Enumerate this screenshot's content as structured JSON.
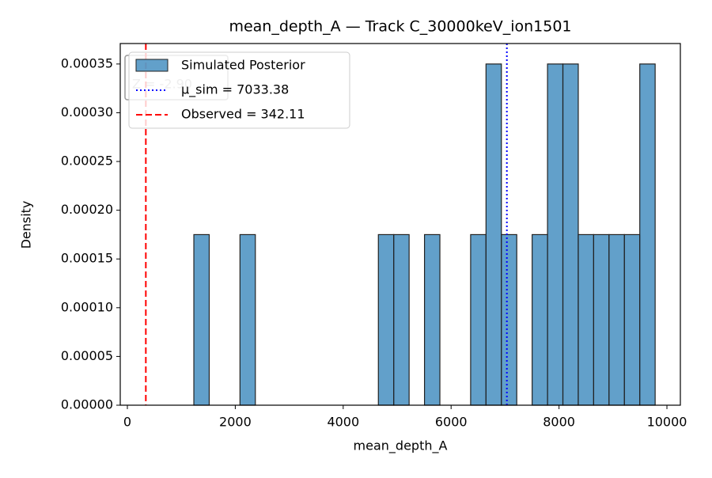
{
  "chart_data": {
    "type": "histogram",
    "title": "mean_depth_A — Track C_30000keV_ion1501",
    "x_label": "mean_depth_A",
    "y_label": "Density",
    "series": [
      {
        "name": "Simulated Posterior",
        "color": "#1f77b4",
        "bins": [
          1232,
          1517,
          1802,
          2087,
          2372,
          2657,
          2942,
          3227,
          3512,
          3797,
          4082,
          4367,
          4652,
          4937,
          5222,
          5507,
          5792,
          6077,
          6362,
          6647,
          6932,
          7217,
          7502,
          7787,
          8072,
          8357,
          8642,
          8927,
          9212,
          9497,
          9782
        ],
        "values": [
          0.000175,
          0,
          0,
          0.000175,
          0,
          0,
          0,
          0,
          0,
          0,
          0,
          0,
          0.000175,
          0.000175,
          0,
          0.000175,
          0,
          0,
          0.000175,
          0.00035,
          0.000175,
          0,
          0.000175,
          0.00035,
          0.00035,
          0.000175,
          0.000175,
          0.000175,
          0.000175,
          0.00035
        ]
      }
    ],
    "lines": [
      {
        "name": "μ_sim = 7033.38",
        "value": 7033.38,
        "color": "#0000ff",
        "style": "dotted"
      },
      {
        "name": "Observed = 342.11",
        "value": 342.11,
        "color": "#ff0000",
        "style": "dashed"
      }
    ],
    "annotation": "Z = -2.90",
    "xlim": [
      -132,
      10249
    ],
    "xticks": [
      0,
      2000,
      4000,
      6000,
      8000,
      10000
    ],
    "ylim": [
      0,
      0.000371
    ],
    "yticks": [
      {
        "value": 0,
        "label": "0.00000"
      },
      {
        "value": 5e-05,
        "label": "0.00005"
      },
      {
        "value": 0.0001,
        "label": "0.00010"
      },
      {
        "value": 0.00015,
        "label": "0.00015"
      },
      {
        "value": 0.0002,
        "label": "0.00020"
      },
      {
        "value": 0.00025,
        "label": "0.00025"
      },
      {
        "value": 0.0003,
        "label": "0.00030"
      },
      {
        "value": 0.00035,
        "label": "0.00035"
      }
    ],
    "legend": "upper left"
  }
}
